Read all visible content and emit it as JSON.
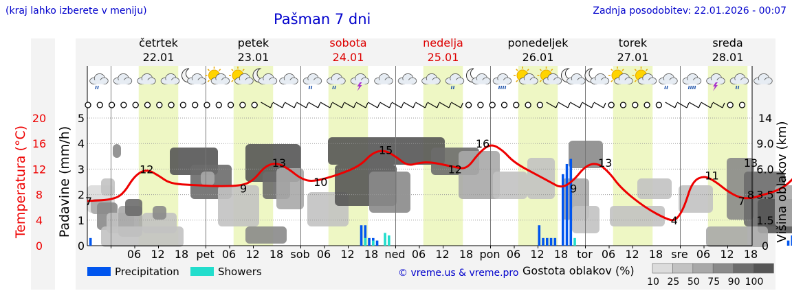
{
  "header": {
    "note": "(kraj lahko izberete v meniju)",
    "title": "Pašman 7 dni",
    "updated": "Zadnja posodobitev: 22.01.2026 - 00:07"
  },
  "days": [
    {
      "name": "četrtek",
      "date": "22.01",
      "weekend": false
    },
    {
      "name": "petek",
      "date": "23.01",
      "weekend": false
    },
    {
      "name": "sobota",
      "date": "24.01",
      "weekend": true
    },
    {
      "name": "nedelja",
      "date": "25.01",
      "weekend": true
    },
    {
      "name": "ponedeljek",
      "date": "26.01",
      "weekend": false
    },
    {
      "name": "torek",
      "date": "27.01",
      "weekend": false
    },
    {
      "name": "sreda",
      "date": "28.01",
      "weekend": false
    }
  ],
  "colors": {
    "weekday": "#000000",
    "weekend": "#dd0000",
    "temperature": "#ee0000",
    "precipitation": "#0055ee",
    "showers": "#22ddcc",
    "daylight": "#eef7c4",
    "link": "#0000cc"
  },
  "icons": [
    "cloud-rain-icon",
    "cloud-icon",
    "cloud-icon",
    "cloud-icon",
    "moon-cloud-icon",
    "sun-cloud-icon",
    "sun-cloud-icon",
    "moon-cloud-icon",
    "cloud-icon",
    "cloud-rain-icon",
    "cloud-rain-icon",
    "thunderstorm-icon",
    "cloud-icon",
    "cloud-icon",
    "cloud-icon",
    "cloud-rain-icon",
    "moon-cloud-icon",
    "cloud-heavy-rain-icon",
    "sun-cloud-icon",
    "sun-cloud-icon",
    "moon-cloud-icon",
    "moon-cloud-icon",
    "sun-cloud-icon",
    "sun-cloud-icon",
    "cloud-rain-icon",
    "cloud-heavy-rain-icon",
    "thunderstorm-icon",
    "cloud-rain-icon",
    "cloud-icon"
  ],
  "chart_data": {
    "type": "line",
    "title": "Pašman 7 dni",
    "hours_total": 168,
    "temperature": {
      "label": "Temperatura (°C)",
      "ylim": [
        0,
        20
      ],
      "ticks": [
        0,
        4,
        8,
        12,
        16,
        20
      ],
      "points": [
        [
          0,
          7
        ],
        [
          6,
          7.2
        ],
        [
          9,
          8
        ],
        [
          12,
          11
        ],
        [
          15,
          12
        ],
        [
          18,
          11
        ],
        [
          21,
          9.7
        ],
        [
          27,
          9.5
        ],
        [
          33,
          9.3
        ],
        [
          39,
          9.4
        ],
        [
          42,
          10.2
        ],
        [
          45,
          12.5
        ],
        [
          48,
          13
        ],
        [
          51,
          12
        ],
        [
          54,
          10.5
        ],
        [
          57,
          10
        ],
        [
          63,
          11
        ],
        [
          69,
          12.5
        ],
        [
          72,
          14.5
        ],
        [
          75,
          15
        ],
        [
          78,
          14
        ],
        [
          81,
          12.5
        ],
        [
          84,
          13
        ],
        [
          87,
          13.1
        ],
        [
          93,
          12.3
        ],
        [
          96,
          12
        ],
        [
          99,
          14.5
        ],
        [
          102,
          16
        ],
        [
          105,
          15
        ],
        [
          108,
          13
        ],
        [
          114,
          11
        ],
        [
          117,
          10
        ],
        [
          120,
          9
        ],
        [
          123,
          10.2
        ],
        [
          126,
          12.5
        ],
        [
          129,
          13
        ],
        [
          132,
          11.5
        ],
        [
          135,
          9
        ],
        [
          141,
          6
        ],
        [
          147,
          4
        ],
        [
          149,
          4
        ],
        [
          151,
          6
        ],
        [
          153,
          10
        ],
        [
          156,
          11
        ],
        [
          159,
          10
        ],
        [
          162,
          8.5
        ],
        [
          165,
          7.5
        ],
        [
          168,
          7.4
        ],
        [
          171,
          8
        ],
        [
          174,
          8.5
        ],
        [
          177,
          9.5
        ],
        [
          180,
          11.5
        ],
        [
          183,
          13
        ],
        [
          186,
          12.5
        ],
        [
          189,
          11
        ],
        [
          192,
          10
        ],
        [
          195,
          8.5
        ],
        [
          198,
          8
        ]
      ],
      "labels": [
        {
          "h": -0.5,
          "v": 7
        },
        {
          "h": 15,
          "v": 12
        },
        {
          "h": 39.5,
          "v": 9
        },
        {
          "h": 48.5,
          "v": 13
        },
        {
          "h": 59,
          "v": 10
        },
        {
          "h": 75.5,
          "v": 15
        },
        {
          "h": 93,
          "v": 12
        },
        {
          "h": 100,
          "v": 16
        },
        {
          "h": 123,
          "v": 9
        },
        {
          "h": 131,
          "v": 13
        },
        {
          "h": 148.5,
          "v": 4
        },
        {
          "h": 158,
          "v": 11
        },
        {
          "h": 165.5,
          "v": 7
        },
        {
          "h": 184,
          "v": 13
        },
        {
          "h": 199.5,
          "v": 8
        }
      ]
    },
    "precipitation": {
      "label": "Padavine (mm/h)",
      "ylim": [
        0,
        5
      ],
      "ticks": [
        0,
        1,
        2,
        3,
        4,
        5
      ],
      "bars": [
        [
          0.5,
          0.3
        ],
        [
          69,
          0.8
        ],
        [
          70,
          0.8
        ],
        [
          71,
          0.3
        ],
        [
          72,
          0.3
        ],
        [
          73,
          0.2
        ],
        [
          114,
          0.8
        ],
        [
          115,
          0.3
        ],
        [
          116,
          0.3
        ],
        [
          117,
          0.3
        ],
        [
          118,
          0.3
        ],
        [
          120,
          2.8
        ],
        [
          121,
          3.2
        ],
        [
          122,
          3.4
        ],
        [
          177,
          0.2
        ],
        [
          178,
          0.4
        ],
        [
          179,
          0.9
        ],
        [
          180,
          0.9
        ],
        [
          181,
          1.3
        ],
        [
          182,
          2.4
        ],
        [
          183,
          3.9
        ],
        [
          184,
          2.3
        ],
        [
          185,
          2.4
        ],
        [
          186,
          2.7
        ],
        [
          187,
          1.9
        ],
        [
          188,
          1.3
        ],
        [
          189,
          1.0
        ],
        [
          190,
          0.8
        ],
        [
          191,
          0.8
        ],
        [
          192,
          0.6
        ],
        [
          193,
          0.5
        ],
        [
          194,
          0.4
        ]
      ]
    },
    "showers": {
      "label": "Showers",
      "bars": [
        [
          70,
          0.3
        ],
        [
          72,
          0.2
        ],
        [
          75,
          0.5
        ],
        [
          76,
          0.4
        ],
        [
          123,
          0.3
        ],
        [
          186,
          0.3
        ]
      ]
    },
    "cloud_base": {
      "label": "Višina oblakov (km)",
      "ticks": [
        "0",
        "1.5",
        "3.5",
        "6.0",
        "9.0",
        "14"
      ]
    },
    "cloud_density": {
      "label": "Gostota oblakov (%)",
      "levels": [
        10,
        25,
        50,
        75,
        90,
        100
      ],
      "grays": [
        "#dcdcdc",
        "#c2c2c2",
        "#a8a8a8",
        "#8a8a8a",
        "#6c6c6c",
        "#555555"
      ]
    },
    "x_ticks": [
      "06",
      "12",
      "18",
      "pet",
      "06",
      "12",
      "18",
      "sob",
      "06",
      "12",
      "18",
      "ned",
      "06",
      "12",
      "18",
      "pon",
      "06",
      "12",
      "18",
      "tor",
      "06",
      "12",
      "18",
      "sre",
      "06",
      "12",
      "18"
    ],
    "legend": {
      "precipitation": "Precipitation",
      "showers": "Showers"
    },
    "credit": "© vreme.us & vreme.pro"
  }
}
